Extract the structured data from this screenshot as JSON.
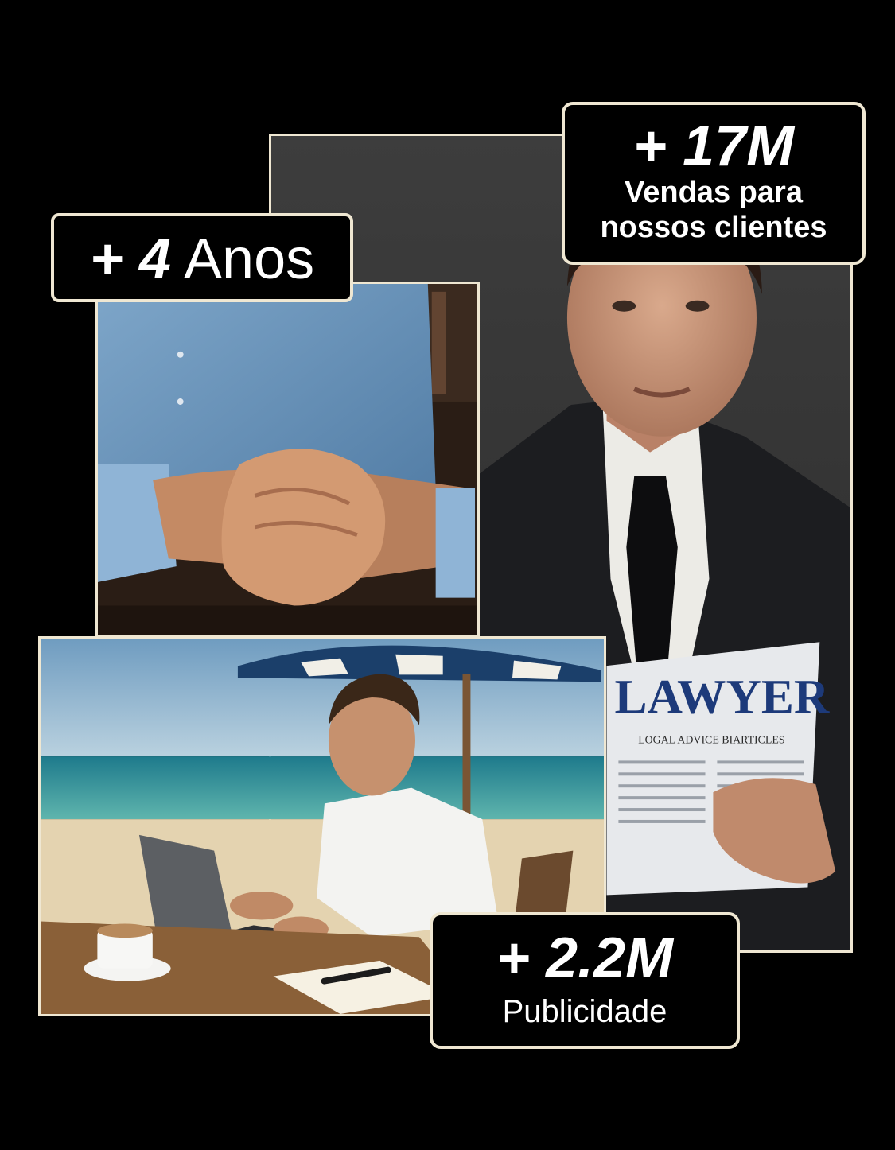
{
  "photos": {
    "lawyer": {
      "icon": "lawyer-with-newspaper-photo",
      "newspaper_title": "LAWYER",
      "newspaper_subtitle": "LOGAL ADVICE BIARTICLES"
    },
    "handshake": {
      "icon": "handshake-photo"
    },
    "beach": {
      "icon": "beach-laptop-work-photo"
    }
  },
  "badges": {
    "years": {
      "prefix": "+ 4",
      "unit": "Anos"
    },
    "sales": {
      "value": "+ 17M",
      "line1": "Vendas para",
      "line2": "nossos clientes"
    },
    "ads": {
      "value": "+ 2.2M",
      "label": "Publicidade"
    }
  },
  "colors": {
    "background": "#000000",
    "badge_border": "#efe7d2",
    "badge_fill": "#000000",
    "badge_text": "#ffffff"
  }
}
